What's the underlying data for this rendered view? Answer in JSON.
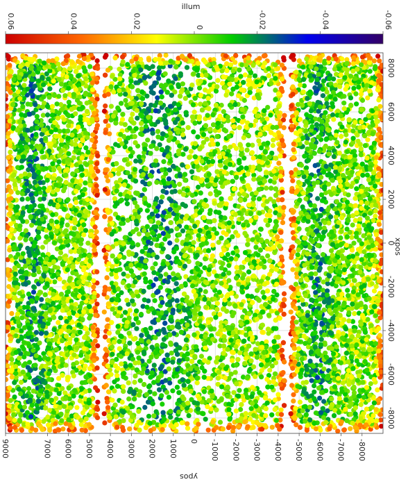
{
  "chart_data": {
    "type": "scatter",
    "orientation": "rotated-90",
    "title": "",
    "colorbar": {
      "label": "illum",
      "range": [
        0.06,
        -0.06
      ],
      "ticks": [
        "0.06",
        "0.04",
        "0.02",
        "0",
        "-0.02",
        "-0.04",
        "-0.06"
      ],
      "colormap": [
        "#cc0000",
        "#ff6600",
        "#ffff00",
        "#00cc00",
        "#0000ee",
        "#330066"
      ]
    },
    "x_axis": {
      "label": "xpos",
      "range": [
        -8700,
        8700
      ],
      "ticks": [
        "8000",
        "6000",
        "4000",
        "2000",
        "0",
        "-2000",
        "-4000",
        "-6000",
        "-8000"
      ]
    },
    "y_axis": {
      "label": "ypos",
      "range": [
        -9000,
        9000
      ],
      "ticks": [
        "9000",
        "7000",
        "6000",
        "5000",
        "4000",
        "3000",
        "2000",
        "1000",
        "0",
        "-1000",
        "-2000",
        "-3000",
        "-4000",
        "-5000",
        "-6000",
        "-7000",
        "-8000"
      ]
    },
    "grid": true,
    "background_grid_color": "#cccccc",
    "point_summary": "dense field of ~thousands of points; illum values near 0 (green) in chip interiors, higher (yellow/red) at chip edges, lower (blue/purple) along some chip columns",
    "chips": [
      {
        "y_range": [
          4600,
          9000
        ],
        "x_range": [
          -8600,
          8600
        ]
      },
      {
        "y_range": [
          -4300,
          4300
        ],
        "x_range": [
          -8600,
          8600
        ]
      },
      {
        "y_range": [
          -9000,
          -4600
        ],
        "x_range": [
          -8600,
          8600
        ]
      }
    ],
    "chip_breaks_x": [
      6500,
      2100,
      -2100,
      -6500
    ]
  }
}
